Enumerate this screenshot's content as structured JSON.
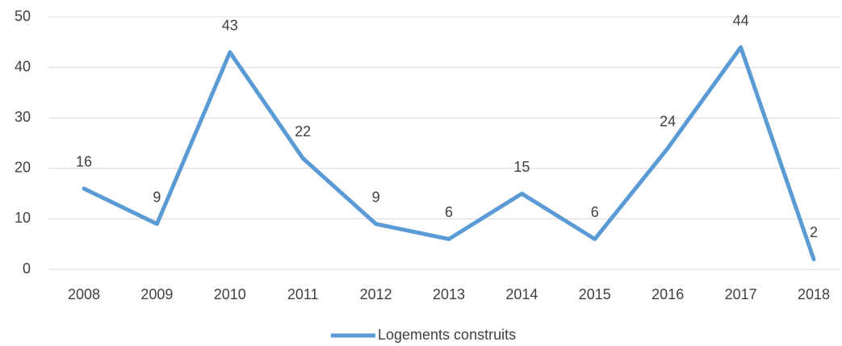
{
  "chart_data": {
    "type": "line",
    "categories": [
      "2008",
      "2009",
      "2010",
      "2011",
      "2012",
      "2013",
      "2014",
      "2015",
      "2016",
      "2017",
      "2018"
    ],
    "series": [
      {
        "name": "Logements construits",
        "color": "#5b9bd5",
        "values": [
          16,
          9,
          43,
          22,
          9,
          6,
          15,
          6,
          24,
          44,
          2
        ]
      }
    ],
    "ylim": [
      0,
      50
    ],
    "yticks": [
      0,
      10,
      20,
      30,
      40,
      50
    ],
    "grid": true,
    "legend": "bottom",
    "data_labels": true
  }
}
